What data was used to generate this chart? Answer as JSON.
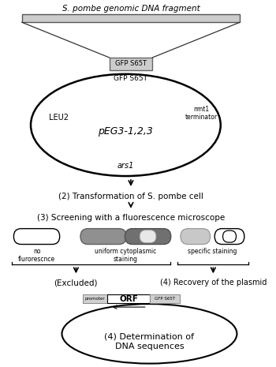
{
  "background_color": "#ffffff",
  "title_text": "S. pombe genomic DNA fragment",
  "plasmid_label": "pEG3-1,2,3",
  "leu2_label": "LEU2",
  "ars1_label": "ars1",
  "nmt1_label": "nmt1\nterminator",
  "gfp_label": "GFP S65T",
  "step2_text": "(2) Transformation of S. pombe cell",
  "step3_text": "(3) Screening with a fluorescence microscope",
  "no_fluor_label": "no\nflurorescnce",
  "uniform_label": "uniform cytoplasmic\nstaining",
  "specific_label": "specific staining",
  "excluded_label": "(Excluded)",
  "recovery_label": "(4) Recovery of the plasmid",
  "promoter_label": "promoter",
  "orf_label": "ORF",
  "gfp2_label": "GFP S65T",
  "dna_seq_label": "(4) Determination of\nDNA sequences",
  "fig_width": 3.5,
  "fig_height": 4.65,
  "dpi": 100
}
